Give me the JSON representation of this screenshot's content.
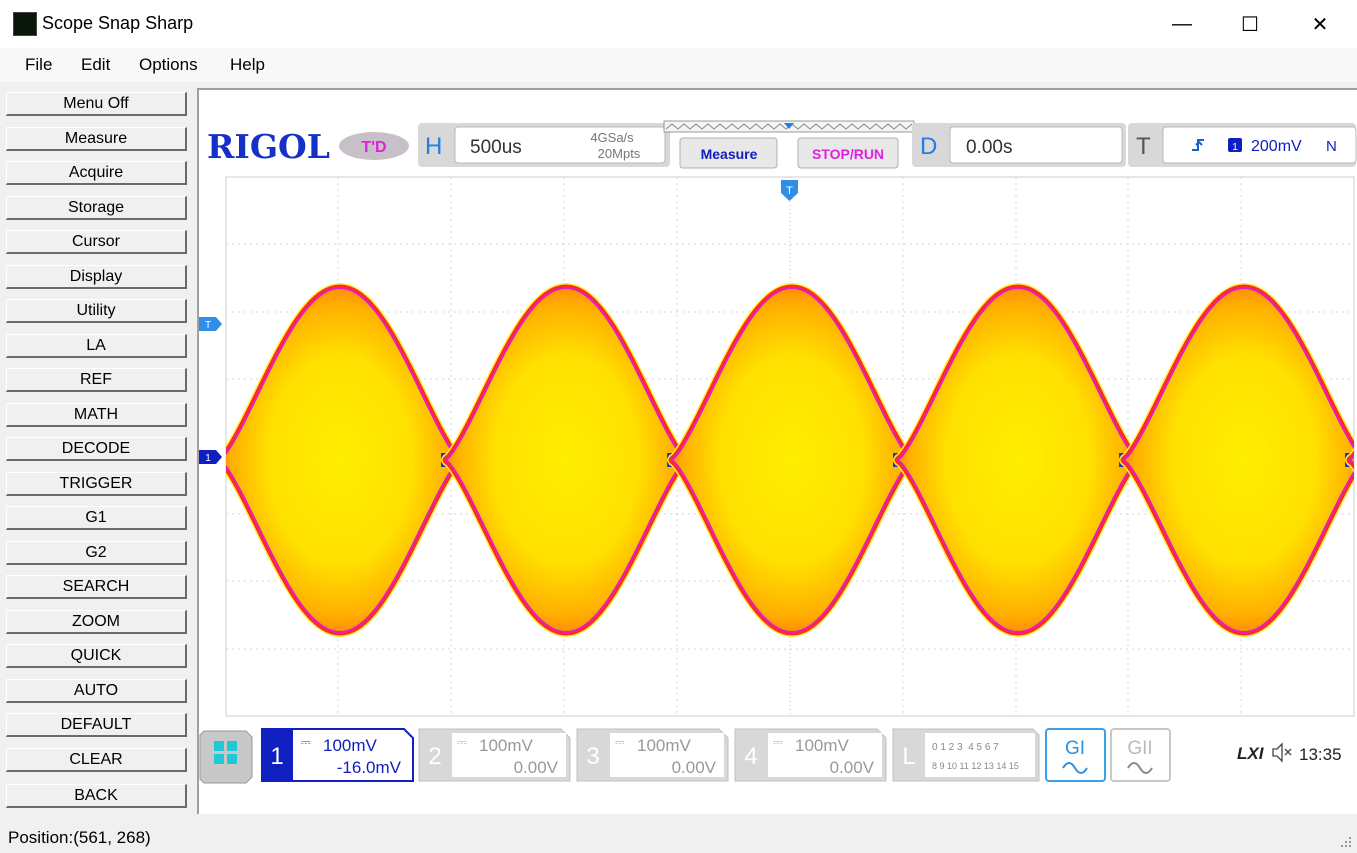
{
  "window": {
    "title": "Scope Snap Sharp",
    "minimize": "—",
    "maximize": "☐",
    "close": "✕"
  },
  "menu": [
    "File",
    "Edit",
    "Options",
    "Help"
  ],
  "sidebar": [
    "Menu Off",
    "Measure",
    "Acquire",
    "Storage",
    "Cursor",
    "Display",
    "Utility",
    "LA",
    "REF",
    "MATH",
    "DECODE",
    "TRIGGER",
    "G1",
    "G2",
    "SEARCH",
    "ZOOM",
    "QUICK",
    "AUTO",
    "DEFAULT",
    "CLEAR",
    "BACK"
  ],
  "scope": {
    "brand": "RIGOL",
    "mode_badge": "T'D",
    "horizontal": {
      "label": "H",
      "timebase": "500us",
      "sample_rate": "4GSa/s",
      "memory_depth": "20Mpts"
    },
    "measure_button": "Measure",
    "run_button": "STOP/RUN",
    "delay": {
      "label": "D",
      "value": "0.00s"
    },
    "trigger": {
      "label": "T",
      "channel": "1",
      "level": "200mV",
      "mode": "N"
    },
    "trigger_marker": "T",
    "ch1_marker": "1",
    "trig_level_marker": "T",
    "channels": [
      {
        "num": "1",
        "scale": "100mV",
        "offset": "-16.0mV",
        "active": true
      },
      {
        "num": "2",
        "scale": "100mV",
        "offset": "0.00V",
        "active": false
      },
      {
        "num": "3",
        "scale": "100mV",
        "offset": "0.00V",
        "active": false
      },
      {
        "num": "4",
        "scale": "100mV",
        "offset": "0.00V",
        "active": false
      }
    ],
    "la": {
      "label": "L",
      "row1": "0 1 2 3  4 5 6 7",
      "row2": "8 9 10 11 12 13 14 15"
    },
    "gen1": "GI",
    "gen2": "GII",
    "lxi": "LXI",
    "clock": "13:35"
  },
  "waveform": {
    "bursts": 5,
    "colors": {
      "outer": "#ffef3a",
      "edge": "#ff2a20",
      "core": "#ffee00",
      "baseline": "#20d0e0",
      "magenta": "#e020c0"
    }
  },
  "status": {
    "position": "Position:(561, 268)"
  }
}
